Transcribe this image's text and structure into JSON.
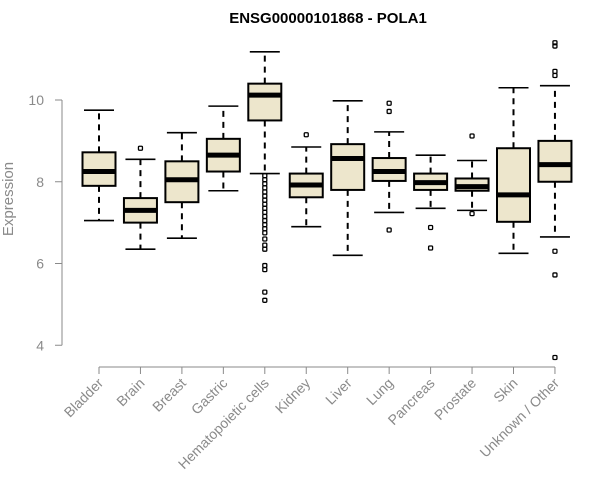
{
  "chart_data": {
    "type": "boxplot",
    "title": "ENSG00000101868 - POLA1",
    "xlabel": "",
    "ylabel": "Expression",
    "ylim": [
      3.5,
      11.5
    ],
    "yticks": [
      4,
      6,
      8,
      10
    ],
    "grid": false,
    "colors": {
      "box_fill": "#ede6cc",
      "box_stroke": "#000000",
      "axis": "#8a8a8a",
      "title": "#000000"
    },
    "categories": [
      "Bladder",
      "Brain",
      "Breast",
      "Gastric",
      "Hematopoietic cells",
      "Kidney",
      "Liver",
      "Lung",
      "Pancreas",
      "Prostate",
      "Skin",
      "Unknown / Other"
    ],
    "boxes": [
      {
        "min": 7.05,
        "q1": 7.9,
        "median": 8.25,
        "q3": 8.72,
        "max": 9.75,
        "outliers": []
      },
      {
        "min": 6.35,
        "q1": 7.0,
        "median": 7.3,
        "q3": 7.6,
        "max": 8.55,
        "outliers": [
          8.82
        ]
      },
      {
        "min": 6.62,
        "q1": 7.5,
        "median": 8.05,
        "q3": 8.5,
        "max": 9.2,
        "outliers": []
      },
      {
        "min": 7.78,
        "q1": 8.25,
        "median": 8.65,
        "q3": 9.05,
        "max": 9.85,
        "outliers": []
      },
      {
        "min": 8.2,
        "q1": 9.5,
        "median": 10.12,
        "q3": 10.4,
        "max": 11.18,
        "outliers": [
          8.15,
          8.05,
          7.95,
          7.85,
          7.75,
          7.65,
          7.55,
          7.45,
          7.35,
          7.25,
          7.15,
          7.05,
          6.95,
          6.85,
          6.75,
          6.6,
          6.45,
          6.35,
          5.95,
          5.85,
          5.3,
          5.1
        ]
      },
      {
        "min": 6.9,
        "q1": 7.62,
        "median": 7.92,
        "q3": 8.2,
        "max": 8.85,
        "outliers": [
          9.15
        ]
      },
      {
        "min": 6.2,
        "q1": 7.8,
        "median": 8.57,
        "q3": 8.92,
        "max": 9.98,
        "outliers": []
      },
      {
        "min": 7.25,
        "q1": 8.02,
        "median": 8.25,
        "q3": 8.58,
        "max": 9.22,
        "outliers": [
          6.82,
          9.72,
          9.92
        ]
      },
      {
        "min": 7.35,
        "q1": 7.8,
        "median": 7.98,
        "q3": 8.2,
        "max": 8.65,
        "outliers": [
          6.88,
          6.38
        ]
      },
      {
        "min": 7.3,
        "q1": 7.78,
        "median": 7.88,
        "q3": 8.08,
        "max": 8.52,
        "outliers": [
          7.22,
          9.12
        ]
      },
      {
        "min": 6.25,
        "q1": 7.02,
        "median": 7.68,
        "q3": 8.82,
        "max": 10.3,
        "outliers": []
      },
      {
        "min": 6.65,
        "q1": 8.0,
        "median": 8.42,
        "q3": 9.0,
        "max": 10.35,
        "outliers": [
          6.3,
          5.72,
          3.7,
          10.6,
          10.7,
          11.32,
          11.4
        ]
      }
    ]
  }
}
